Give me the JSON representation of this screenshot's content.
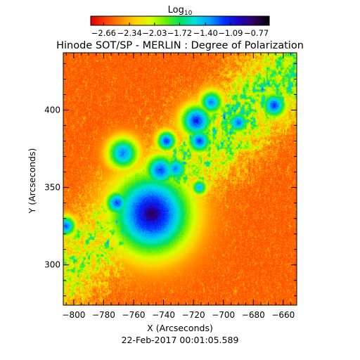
{
  "chart_data": {
    "type": "heatmap",
    "title": "Hinode SOT/SP - MERLIN : Degree of Polarization",
    "timestamp": "22-Feb-2017 00:01:05.589",
    "xlabel": "X (Arcseconds)",
    "ylabel": "Y (Arcseconds)",
    "xlim": [
      -807,
      -651
    ],
    "ylim": [
      274,
      437
    ],
    "x_ticks": [
      -800,
      -780,
      -760,
      -740,
      -720,
      -700,
      -680,
      -660
    ],
    "y_ticks": [
      300,
      350,
      400
    ],
    "colorbar": {
      "label_base": "Log",
      "label_sub": "10",
      "range": [
        -2.82,
        -0.61
      ],
      "tick_values": [
        -2.66,
        -2.34,
        -2.03,
        -1.72,
        -1.4,
        -1.09,
        -0.77
      ],
      "tick_labels": [
        "−2.66",
        "−2.34",
        "−2.03",
        "−1.72",
        "−1.40",
        "−1.09",
        "−0.77"
      ],
      "colormap": [
        "#e00000",
        "#ff4000",
        "#ff8c00",
        "#ffd200",
        "#d8ff00",
        "#6ef000",
        "#00e060",
        "#00e0e0",
        "#00a0ff",
        "#0030ff",
        "#2000c0",
        "#300060",
        "#000000"
      ]
    },
    "background_level": -2.6,
    "features": [
      {
        "name": "sunspot umbra",
        "x": -748,
        "y": 333,
        "peak": -0.8,
        "radius": 10
      },
      {
        "name": "pore",
        "x": -771,
        "y": 340,
        "peak": -1.15,
        "radius": 3
      },
      {
        "name": "pore",
        "x": -767,
        "y": 372,
        "peak": -1.3,
        "radius": 4
      },
      {
        "name": "pore",
        "x": -742,
        "y": 361,
        "peak": -1.15,
        "radius": 4
      },
      {
        "name": "pore",
        "x": -738,
        "y": 380,
        "peak": -1.1,
        "radius": 2.5
      },
      {
        "name": "pore",
        "x": -718,
        "y": 393,
        "peak": -1.05,
        "radius": 4
      },
      {
        "name": "pore",
        "x": -716,
        "y": 380,
        "peak": -1.15,
        "radius": 3
      },
      {
        "name": "pore",
        "x": -732,
        "y": 362,
        "peak": -1.3,
        "radius": 3
      },
      {
        "name": "pore",
        "x": -708,
        "y": 405,
        "peak": -1.3,
        "radius": 3
      },
      {
        "name": "pore",
        "x": -690,
        "y": 392,
        "peak": -1.2,
        "radius": 2.5
      },
      {
        "name": "pore",
        "x": -666,
        "y": 403,
        "peak": -1.1,
        "radius": 3
      },
      {
        "name": "pore",
        "x": -716,
        "y": 350,
        "peak": -1.4,
        "radius": 2
      },
      {
        "name": "pore",
        "x": -805,
        "y": 325,
        "peak": -1.2,
        "radius": 2.5
      }
    ]
  }
}
